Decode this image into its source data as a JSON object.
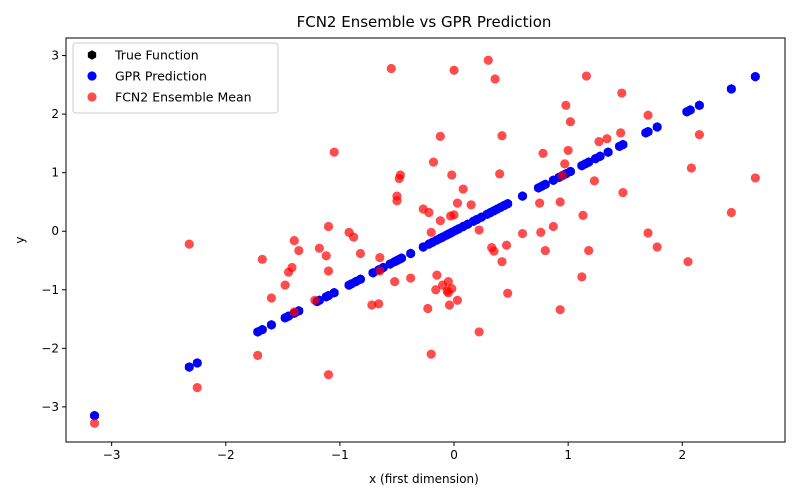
{
  "chart_data": {
    "type": "scatter",
    "title": "FCN2 Ensemble vs GPR Prediction",
    "xlabel": "x (first dimension)",
    "ylabel": "y",
    "xlim": [
      -3.4,
      2.9
    ],
    "ylim": [
      -3.6,
      3.3
    ],
    "xticks": [
      -3,
      -2,
      -1,
      0,
      1,
      2
    ],
    "yticks": [
      -3,
      -2,
      -1,
      0,
      1,
      2,
      3
    ],
    "xtick_labels": [
      "−3",
      "−2",
      "−1",
      "0",
      "1",
      "2"
    ],
    "ytick_labels": [
      "−3",
      "−2",
      "−1",
      "0",
      "1",
      "2",
      "3"
    ],
    "grid": false,
    "legend_position": "top-left",
    "series": [
      {
        "name": "True Function",
        "color": "#000000",
        "marker": "hexagon",
        "points": [
          [
            -3.15,
            -3.15
          ],
          [
            -2.32,
            -2.32
          ],
          [
            -2.25,
            -2.25
          ],
          [
            -1.72,
            -1.72
          ],
          [
            -1.68,
            -1.68
          ],
          [
            -1.6,
            -1.6
          ],
          [
            -1.48,
            -1.48
          ],
          [
            -1.45,
            -1.45
          ],
          [
            -1.4,
            -1.4
          ],
          [
            -1.36,
            -1.36
          ],
          [
            -1.2,
            -1.2
          ],
          [
            -1.18,
            -1.18
          ],
          [
            -1.12,
            -1.12
          ],
          [
            -1.1,
            -1.1
          ],
          [
            -1.05,
            -1.05
          ],
          [
            -0.92,
            -0.92
          ],
          [
            -0.9,
            -0.9
          ],
          [
            -0.86,
            -0.86
          ],
          [
            -0.82,
            -0.82
          ],
          [
            -0.71,
            -0.71
          ],
          [
            -0.66,
            -0.66
          ],
          [
            -0.62,
            -0.62
          ],
          [
            -0.56,
            -0.56
          ],
          [
            -0.52,
            -0.52
          ],
          [
            -0.5,
            -0.5
          ],
          [
            -0.48,
            -0.48
          ],
          [
            -0.46,
            -0.46
          ],
          [
            -0.38,
            -0.38
          ],
          [
            -0.27,
            -0.27
          ],
          [
            -0.22,
            -0.22
          ],
          [
            -0.19,
            -0.19
          ],
          [
            -0.15,
            -0.15
          ],
          [
            -0.12,
            -0.12
          ],
          [
            -0.1,
            -0.1
          ],
          [
            -0.07,
            -0.07
          ],
          [
            -0.05,
            -0.05
          ],
          [
            -0.03,
            -0.03
          ],
          [
            -0.01,
            -0.01
          ],
          [
            0.02,
            0.02
          ],
          [
            0.04,
            0.04
          ],
          [
            0.08,
            0.08
          ],
          [
            0.12,
            0.12
          ],
          [
            0.17,
            0.17
          ],
          [
            0.2,
            0.2
          ],
          [
            0.24,
            0.24
          ],
          [
            0.29,
            0.29
          ],
          [
            0.32,
            0.32
          ],
          [
            0.35,
            0.35
          ],
          [
            0.38,
            0.38
          ],
          [
            0.41,
            0.41
          ],
          [
            0.44,
            0.44
          ],
          [
            0.47,
            0.47
          ],
          [
            0.6,
            0.6
          ],
          [
            0.74,
            0.74
          ],
          [
            0.77,
            0.77
          ],
          [
            0.8,
            0.8
          ],
          [
            0.87,
            0.87
          ],
          [
            0.92,
            0.92
          ],
          [
            0.95,
            0.95
          ],
          [
            0.98,
            0.98
          ],
          [
            1.02,
            1.02
          ],
          [
            1.12,
            1.12
          ],
          [
            1.15,
            1.15
          ],
          [
            1.18,
            1.18
          ],
          [
            1.24,
            1.24
          ],
          [
            1.28,
            1.28
          ],
          [
            1.35,
            1.35
          ],
          [
            1.45,
            1.45
          ],
          [
            1.48,
            1.48
          ],
          [
            1.68,
            1.68
          ],
          [
            1.7,
            1.7
          ],
          [
            1.78,
            1.78
          ],
          [
            2.04,
            2.04
          ],
          [
            2.07,
            2.07
          ],
          [
            2.15,
            2.15
          ],
          [
            2.43,
            2.43
          ],
          [
            2.64,
            2.64
          ]
        ]
      },
      {
        "name": "GPR Prediction",
        "color": "#0000ff",
        "marker": "circle",
        "points": [
          [
            -3.15,
            -3.15
          ],
          [
            -2.32,
            -2.32
          ],
          [
            -2.25,
            -2.25
          ],
          [
            -1.72,
            -1.72
          ],
          [
            -1.68,
            -1.68
          ],
          [
            -1.6,
            -1.6
          ],
          [
            -1.48,
            -1.48
          ],
          [
            -1.45,
            -1.45
          ],
          [
            -1.4,
            -1.4
          ],
          [
            -1.36,
            -1.36
          ],
          [
            -1.2,
            -1.2
          ],
          [
            -1.18,
            -1.18
          ],
          [
            -1.12,
            -1.12
          ],
          [
            -1.1,
            -1.1
          ],
          [
            -1.05,
            -1.05
          ],
          [
            -0.92,
            -0.92
          ],
          [
            -0.9,
            -0.9
          ],
          [
            -0.86,
            -0.86
          ],
          [
            -0.82,
            -0.82
          ],
          [
            -0.71,
            -0.71
          ],
          [
            -0.66,
            -0.66
          ],
          [
            -0.62,
            -0.62
          ],
          [
            -0.56,
            -0.56
          ],
          [
            -0.52,
            -0.52
          ],
          [
            -0.5,
            -0.5
          ],
          [
            -0.48,
            -0.48
          ],
          [
            -0.46,
            -0.46
          ],
          [
            -0.38,
            -0.38
          ],
          [
            -0.27,
            -0.27
          ],
          [
            -0.22,
            -0.22
          ],
          [
            -0.19,
            -0.19
          ],
          [
            -0.15,
            -0.15
          ],
          [
            -0.12,
            -0.12
          ],
          [
            -0.1,
            -0.1
          ],
          [
            -0.07,
            -0.07
          ],
          [
            -0.05,
            -0.05
          ],
          [
            -0.03,
            -0.03
          ],
          [
            -0.01,
            -0.01
          ],
          [
            0.02,
            0.02
          ],
          [
            0.04,
            0.04
          ],
          [
            0.08,
            0.08
          ],
          [
            0.12,
            0.12
          ],
          [
            0.17,
            0.17
          ],
          [
            0.2,
            0.2
          ],
          [
            0.24,
            0.24
          ],
          [
            0.29,
            0.29
          ],
          [
            0.32,
            0.32
          ],
          [
            0.35,
            0.35
          ],
          [
            0.38,
            0.38
          ],
          [
            0.41,
            0.41
          ],
          [
            0.44,
            0.44
          ],
          [
            0.47,
            0.47
          ],
          [
            0.6,
            0.6
          ],
          [
            0.74,
            0.74
          ],
          [
            0.77,
            0.77
          ],
          [
            0.8,
            0.8
          ],
          [
            0.87,
            0.87
          ],
          [
            0.92,
            0.92
          ],
          [
            0.95,
            0.95
          ],
          [
            0.98,
            0.98
          ],
          [
            1.02,
            1.02
          ],
          [
            1.12,
            1.12
          ],
          [
            1.15,
            1.15
          ],
          [
            1.18,
            1.18
          ],
          [
            1.24,
            1.24
          ],
          [
            1.28,
            1.28
          ],
          [
            1.35,
            1.35
          ],
          [
            1.45,
            1.45
          ],
          [
            1.48,
            1.48
          ],
          [
            1.68,
            1.68
          ],
          [
            1.7,
            1.7
          ],
          [
            1.78,
            1.78
          ],
          [
            2.04,
            2.04
          ],
          [
            2.07,
            2.07
          ],
          [
            2.15,
            2.15
          ],
          [
            2.43,
            2.43
          ],
          [
            2.64,
            2.64
          ]
        ]
      },
      {
        "name": "FCN2 Ensemble Mean",
        "color": "#ff0000",
        "alpha": 0.7,
        "marker": "circle",
        "points": [
          [
            -3.15,
            -3.28
          ],
          [
            -2.32,
            -0.22
          ],
          [
            -2.25,
            -2.67
          ],
          [
            -1.72,
            -2.12
          ],
          [
            -1.68,
            -0.48
          ],
          [
            -1.6,
            -1.14
          ],
          [
            -1.48,
            -0.92
          ],
          [
            -1.45,
            -0.7
          ],
          [
            -1.42,
            -0.62
          ],
          [
            -1.4,
            -0.16
          ],
          [
            -1.36,
            -0.33
          ],
          [
            -1.4,
            -1.38
          ],
          [
            -1.22,
            -1.18
          ],
          [
            -1.18,
            -0.29
          ],
          [
            -1.12,
            -0.42
          ],
          [
            -1.1,
            0.08
          ],
          [
            -1.1,
            -0.68
          ],
          [
            -1.1,
            -2.45
          ],
          [
            -1.05,
            1.35
          ],
          [
            -0.92,
            -0.02
          ],
          [
            -0.88,
            -0.1
          ],
          [
            -0.82,
            -0.38
          ],
          [
            -0.72,
            -1.26
          ],
          [
            -0.66,
            -1.24
          ],
          [
            -0.65,
            -0.45
          ],
          [
            -0.65,
            -0.68
          ],
          [
            -0.55,
            2.78
          ],
          [
            -0.52,
            -0.86
          ],
          [
            -0.5,
            0.52
          ],
          [
            -0.5,
            0.6
          ],
          [
            -0.48,
            0.9
          ],
          [
            -0.47,
            0.96
          ],
          [
            -0.38,
            -0.8
          ],
          [
            -0.27,
            0.38
          ],
          [
            -0.23,
            -1.32
          ],
          [
            -0.22,
            0.32
          ],
          [
            -0.2,
            -0.02
          ],
          [
            -0.2,
            -2.1
          ],
          [
            -0.18,
            1.18
          ],
          [
            -0.16,
            -1.0
          ],
          [
            -0.15,
            -0.75
          ],
          [
            -0.12,
            1.62
          ],
          [
            -0.12,
            0.18
          ],
          [
            -0.1,
            -0.92
          ],
          [
            -0.06,
            -1.02
          ],
          [
            -0.05,
            -0.86
          ],
          [
            -0.05,
            -1.05
          ],
          [
            -0.04,
            -1.26
          ],
          [
            -0.03,
            0.26
          ],
          [
            -0.02,
            0.96
          ],
          [
            0.0,
            2.75
          ],
          [
            -0.02,
            -0.98
          ],
          [
            0.0,
            0.28
          ],
          [
            0.03,
            -1.18
          ],
          [
            0.03,
            0.48
          ],
          [
            0.08,
            0.72
          ],
          [
            0.15,
            0.45
          ],
          [
            0.22,
            0.02
          ],
          [
            0.22,
            -1.72
          ],
          [
            0.3,
            2.92
          ],
          [
            0.33,
            -0.28
          ],
          [
            0.35,
            -0.34
          ],
          [
            0.36,
            2.6
          ],
          [
            0.4,
            0.98
          ],
          [
            0.42,
            1.63
          ],
          [
            0.42,
            -0.52
          ],
          [
            0.46,
            -0.24
          ],
          [
            0.47,
            -1.06
          ],
          [
            0.6,
            -0.04
          ],
          [
            0.75,
            0.48
          ],
          [
            0.76,
            -0.02
          ],
          [
            0.78,
            1.33
          ],
          [
            0.8,
            -0.33
          ],
          [
            0.87,
            0.08
          ],
          [
            0.93,
            0.5
          ],
          [
            0.93,
            -1.34
          ],
          [
            0.95,
            0.95
          ],
          [
            0.97,
            1.15
          ],
          [
            0.98,
            2.15
          ],
          [
            1.0,
            1.38
          ],
          [
            1.02,
            1.87
          ],
          [
            1.12,
            -0.78
          ],
          [
            1.13,
            0.27
          ],
          [
            1.16,
            2.65
          ],
          [
            1.18,
            -0.33
          ],
          [
            1.23,
            0.86
          ],
          [
            1.27,
            1.53
          ],
          [
            1.34,
            1.58
          ],
          [
            1.46,
            1.68
          ],
          [
            1.47,
            2.36
          ],
          [
            1.48,
            0.66
          ],
          [
            1.7,
            1.98
          ],
          [
            1.7,
            -0.03
          ],
          [
            1.78,
            -0.27
          ],
          [
            2.05,
            -0.52
          ],
          [
            2.08,
            1.08
          ],
          [
            2.15,
            1.65
          ],
          [
            2.43,
            0.32
          ],
          [
            2.64,
            0.91
          ]
        ]
      }
    ]
  }
}
